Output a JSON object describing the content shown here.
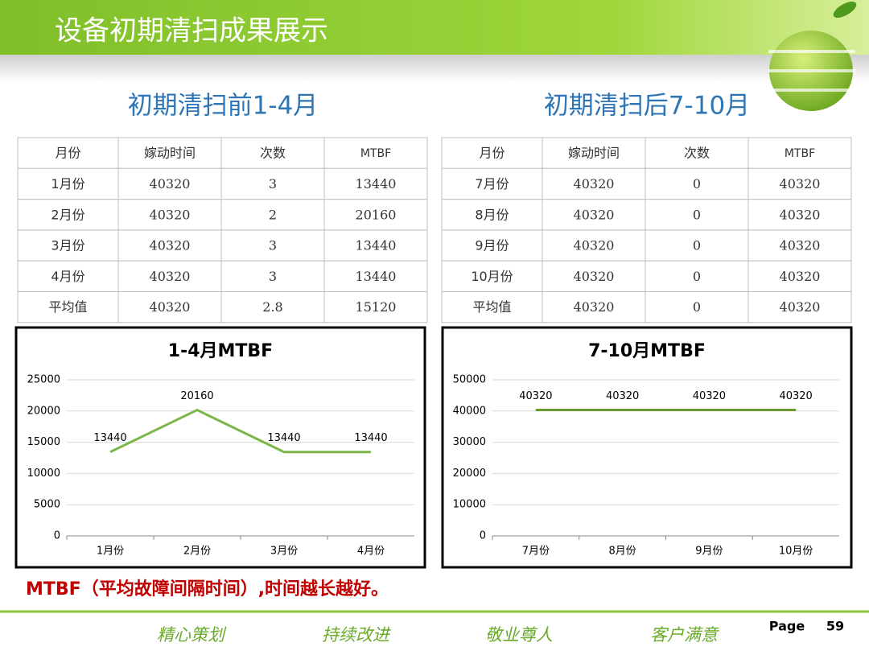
{
  "header": {
    "title": "设备初期清扫成果展示"
  },
  "tables": [
    {
      "title": "初期清扫前1-4月",
      "columns": [
        "月份",
        "嫁动时间",
        "次数",
        "MTBF"
      ],
      "rows": [
        [
          "1月份",
          40320,
          3,
          13440
        ],
        [
          "2月份",
          40320,
          2,
          20160
        ],
        [
          "3月份",
          40320,
          3,
          13440
        ],
        [
          "4月份",
          40320,
          3,
          13440
        ],
        [
          "平均值",
          40320,
          2.8,
          15120
        ]
      ]
    },
    {
      "title": "初期清扫后7-10月",
      "columns": [
        "月份",
        "嫁动时间",
        "次数",
        "MTBF"
      ],
      "rows": [
        [
          "7月份",
          40320,
          0,
          40320
        ],
        [
          "8月份",
          40320,
          0,
          40320
        ],
        [
          "9月份",
          40320,
          0,
          40320
        ],
        [
          "10月份",
          40320,
          0,
          40320
        ],
        [
          "平均值",
          40320,
          0,
          40320
        ]
      ]
    }
  ],
  "chart_data": [
    {
      "type": "line",
      "title": "1-4月MTBF",
      "categories": [
        "1月份",
        "2月份",
        "3月份",
        "4月份"
      ],
      "values": [
        13440,
        20160,
        13440,
        13440
      ],
      "color": "#7ab648",
      "ylim": [
        0,
        25000
      ],
      "yticks": [
        0,
        5000,
        10000,
        15000,
        20000,
        25000
      ],
      "grid": true
    },
    {
      "type": "line",
      "title": "7-10月MTBF",
      "categories": [
        "7月份",
        "8月份",
        "9月份",
        "10月份"
      ],
      "values": [
        40320,
        40320,
        40320,
        40320
      ],
      "color": "#6a9a2e",
      "ylim": [
        0,
        50000
      ],
      "yticks": [
        0,
        10000,
        20000,
        30000,
        40000,
        50000
      ],
      "grid": true
    }
  ],
  "note": "MTBF（平均故障间隔时间）,时间越长越好。",
  "footer": {
    "slogans": [
      "精心策划",
      "持续改进",
      "敬业尊人",
      "客户满意"
    ],
    "page_label": "Page",
    "page_number": "59"
  }
}
